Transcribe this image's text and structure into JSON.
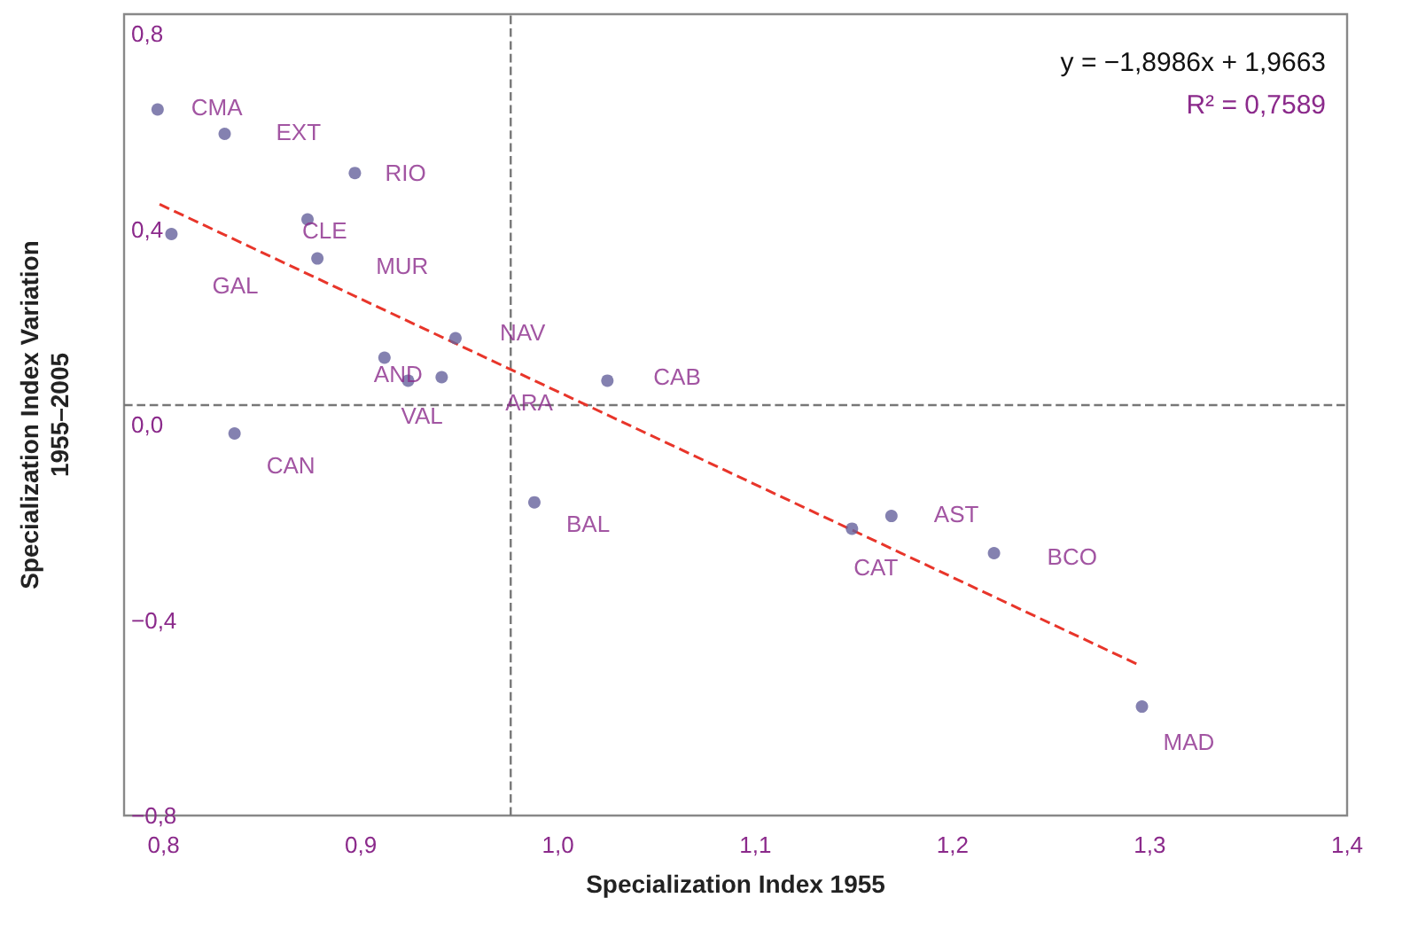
{
  "chart_data": {
    "type": "scatter",
    "xlabel": "Specialization Index 1955",
    "ylabel": "Specialization Index Variation\n1955–2005",
    "xlim": [
      0.78,
      1.4
    ],
    "xticks": [
      {
        "value": 0.8,
        "label": "0,8"
      },
      {
        "value": 0.9,
        "label": "0,9"
      },
      {
        "value": 1.0,
        "label": "1,0"
      },
      {
        "value": 1.1,
        "label": "1,1"
      },
      {
        "value": 1.2,
        "label": "1,2"
      },
      {
        "value": 1.3,
        "label": "1,3"
      },
      {
        "value": 1.4,
        "label": "1,4"
      }
    ],
    "ylim": [
      -0.8,
      0.84
    ],
    "yticks": [
      {
        "value": -0.8,
        "label": "−0,8"
      },
      {
        "value": -0.4,
        "label": "−0,4"
      },
      {
        "value": 0,
        "label": "0,0"
      },
      {
        "value": 0.4,
        "label": "0,4"
      },
      {
        "value": 0.8,
        "label": "0,8"
      }
    ],
    "grid": false,
    "marker": "circle",
    "series": [
      {
        "color": "#65629c",
        "x": [
          0.797,
          0.831,
          0.897,
          0.873,
          0.804,
          0.878,
          0.948,
          0.912,
          0.924,
          0.941,
          1.025,
          0.836,
          0.988,
          1.149,
          1.169,
          1.221,
          1.296
        ],
        "values": [
          0.645,
          0.595,
          0.515,
          0.42,
          0.39,
          0.34,
          0.177,
          0.137,
          0.09,
          0.097,
          0.09,
          -0.018,
          -0.159,
          -0.213,
          -0.187,
          -0.263,
          -0.577
        ]
      },
      {
        "type": "line",
        "color": "#e8352a",
        "line_style": "dashed",
        "marker": "none",
        "x": [
          0.798,
          1.294
        ],
        "values": [
          0.451,
          -0.491
        ]
      }
    ],
    "ref_lines": [
      {
        "axis": "x",
        "value": 0.976,
        "color": "#777777",
        "line_style": "dashed"
      },
      {
        "axis": "y",
        "value": 0.04,
        "color": "#777777",
        "line_style": "dashed"
      }
    ],
    "annotations": [
      "y = −1,8986x + 1,9663",
      "R² = 0,7589",
      {
        "text": "CMA",
        "x": 0.797,
        "y": 0.645
      },
      {
        "text": "EXT",
        "x": 0.831,
        "y": 0.595
      },
      {
        "text": "RIO",
        "x": 0.897,
        "y": 0.515
      },
      {
        "text": "CLE",
        "x": 0.873,
        "y": 0.42
      },
      {
        "text": "GAL",
        "x": 0.804,
        "y": 0.39
      },
      {
        "text": "MUR",
        "x": 0.878,
        "y": 0.34
      },
      {
        "text": "NAV",
        "x": 0.948,
        "y": 0.177
      },
      {
        "text": "AND",
        "x": 0.912,
        "y": 0.137
      },
      {
        "text": "VAL",
        "x": 0.924,
        "y": 0.09
      },
      {
        "text": "ARA",
        "x": 0.941,
        "y": 0.097
      },
      {
        "text": "CAB",
        "x": 1.025,
        "y": 0.09
      },
      {
        "text": "CAN",
        "x": 0.836,
        "y": -0.018
      },
      {
        "text": "BAL",
        "x": 0.988,
        "y": -0.159
      },
      {
        "text": "CAT",
        "x": 1.149,
        "y": -0.213
      },
      {
        "text": "AST",
        "x": 1.169,
        "y": -0.187
      },
      {
        "text": "BCO",
        "x": 1.221,
        "y": -0.263
      },
      {
        "text": "MAD",
        "x": 1.296,
        "y": -0.577
      }
    ]
  }
}
